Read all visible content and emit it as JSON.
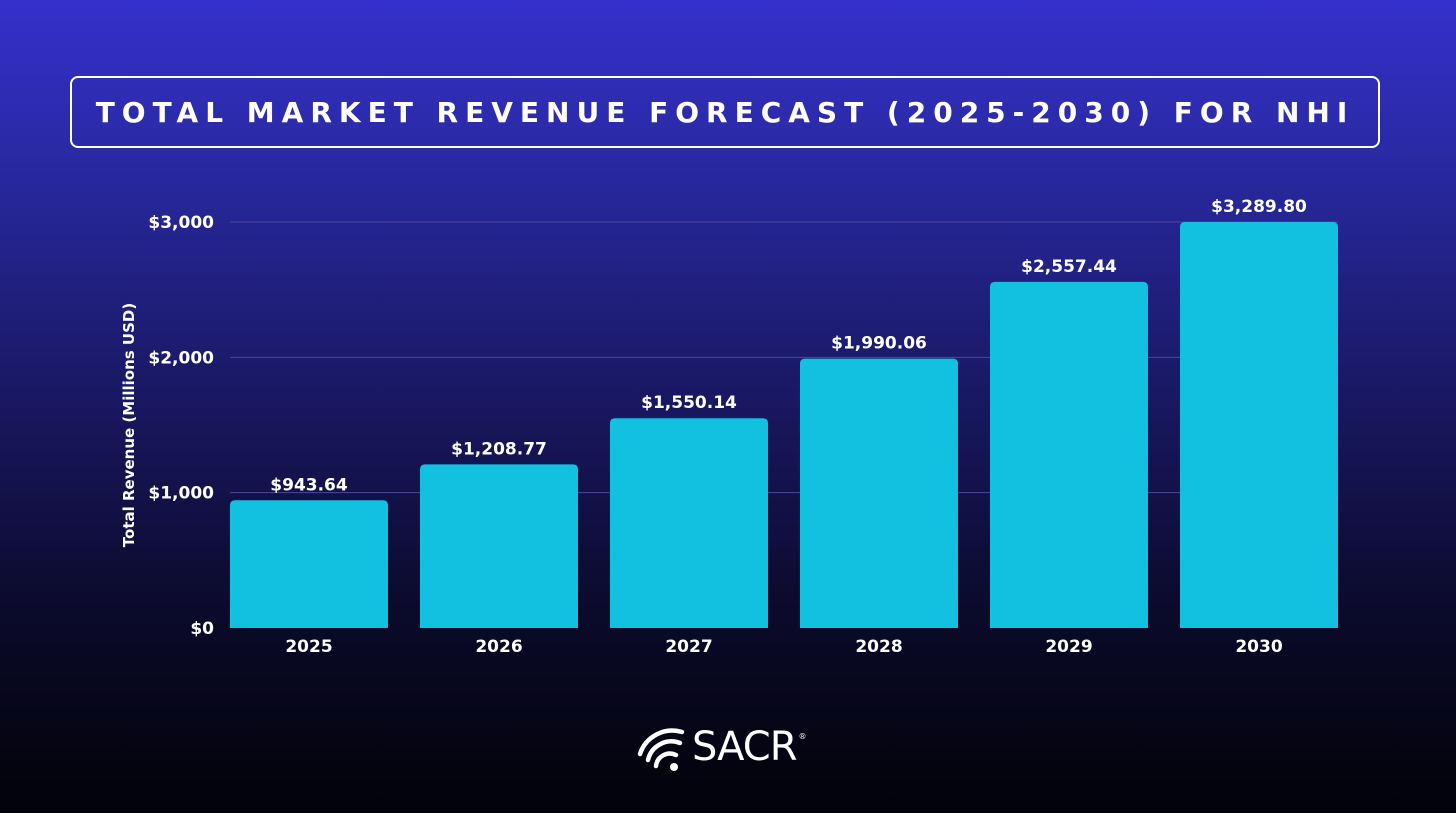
{
  "title": "TOTAL MARKET REVENUE FORECAST (2025-2030) FOR NHI",
  "colors": {
    "bar": "#12c1df",
    "gridline": "#4a4a9a",
    "text": "#ffffff"
  },
  "chart_data": {
    "type": "bar",
    "title": "TOTAL MARKET REVENUE FORECAST (2025-2030) FOR NHI",
    "categories": [
      "2025",
      "2026",
      "2027",
      "2028",
      "2029",
      "2030"
    ],
    "values": [
      943.64,
      1208.77,
      1550.14,
      1990.06,
      2557.44,
      3289.8
    ],
    "value_labels": [
      "$943.64",
      "$1,208.77",
      "$1,550.14",
      "$1,990.06",
      "$2,557.44",
      "$3,289.80"
    ],
    "xlabel": "",
    "ylabel": "Total Revenue (Millions USD)",
    "ylim": [
      0,
      3000
    ],
    "yticks": [
      0,
      1000,
      2000,
      3000
    ],
    "ytick_labels": [
      "$0",
      "$1,000",
      "$2,000",
      "$3,000"
    ],
    "grid": true,
    "legend": "none"
  },
  "logo": {
    "name": "SACR",
    "mark": "®",
    "icon": "wifi-signal-icon"
  }
}
